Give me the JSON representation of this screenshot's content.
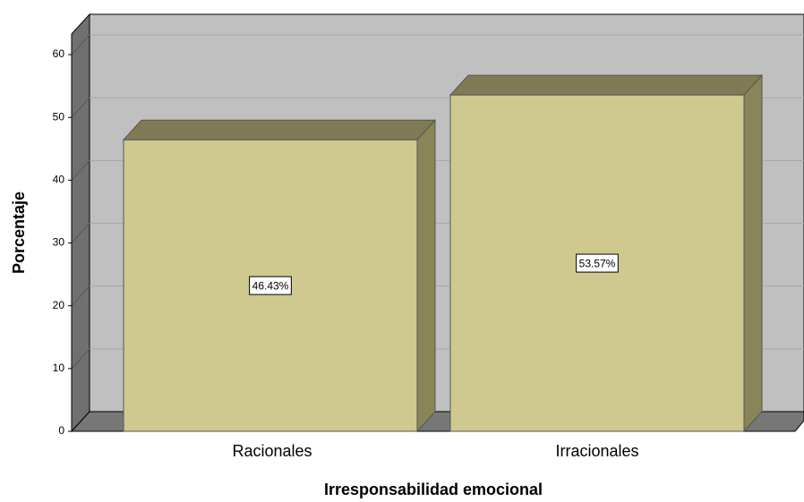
{
  "chart_data": {
    "type": "bar3d",
    "categories": [
      "Racionales",
      "Irracionales"
    ],
    "values": [
      46.43,
      53.57
    ],
    "value_labels": [
      "46.43%",
      "53.57%"
    ],
    "x_label": "Irresponsabilidad emocional",
    "y_label": "Porcentaje",
    "color": "#cfc98f",
    "ylim": [
      0,
      63
    ],
    "yticks": [
      0,
      10,
      20,
      30,
      40,
      50,
      60
    ],
    "grid": true
  }
}
